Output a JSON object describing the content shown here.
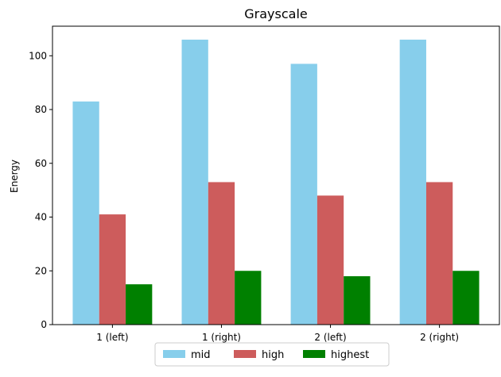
{
  "chart_data": {
    "type": "bar",
    "title": "Grayscale",
    "xlabel": "",
    "ylabel": "Energy",
    "categories": [
      "1 (left)",
      "1 (right)",
      "2 (left)",
      "2 (right)"
    ],
    "series": [
      {
        "name": "mid",
        "color": "#87CEEB",
        "values": [
          83,
          106,
          97,
          106
        ]
      },
      {
        "name": "high",
        "color": "#CD5C5C",
        "values": [
          41,
          53,
          48,
          53
        ]
      },
      {
        "name": "highest",
        "color": "#008000",
        "values": [
          15,
          20,
          18,
          20
        ]
      }
    ],
    "ylim": [
      0,
      111
    ],
    "yticks": [
      0,
      20,
      40,
      60,
      80,
      100
    ],
    "grid": false,
    "legend_position": "bottom-center"
  }
}
